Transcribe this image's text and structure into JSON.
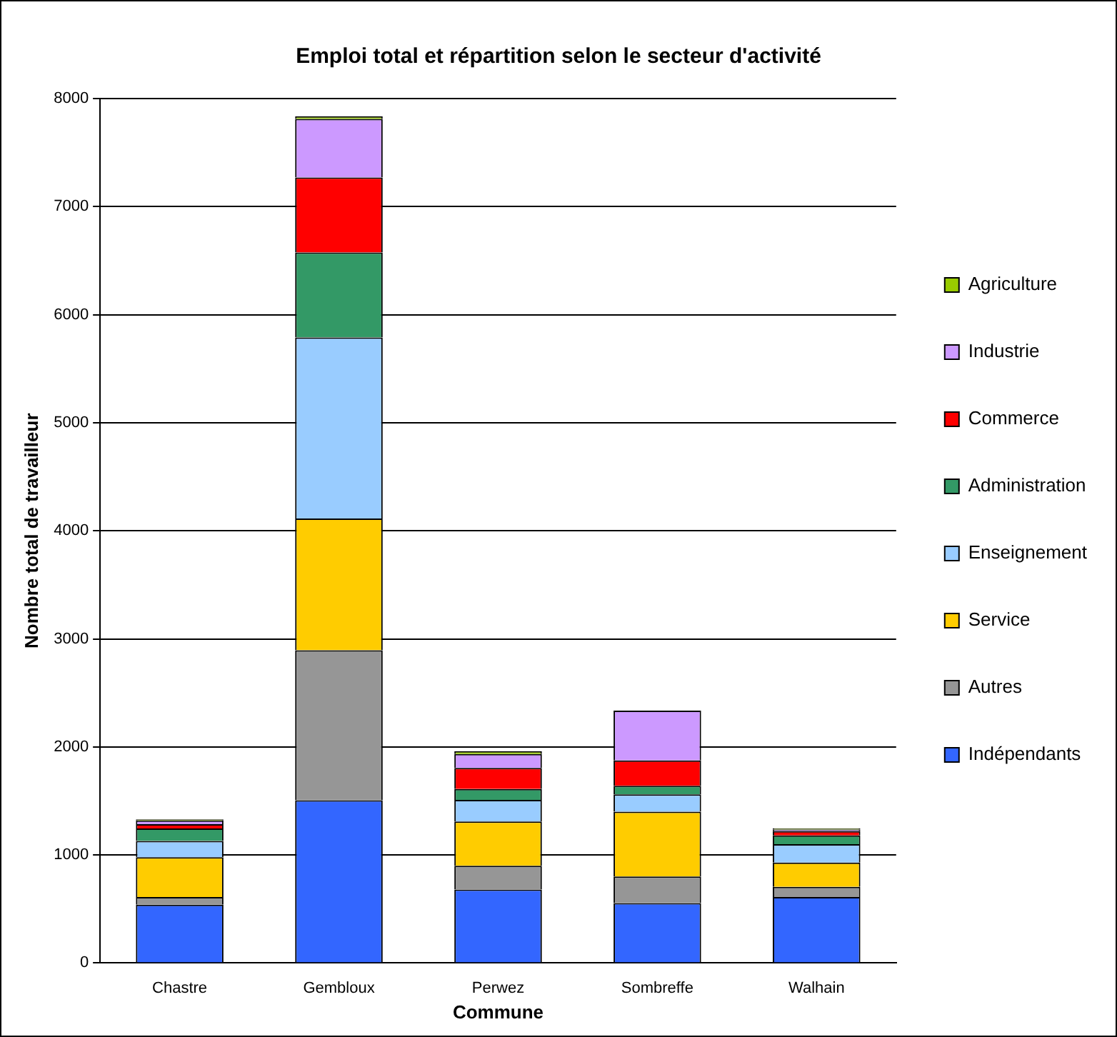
{
  "chart_data": {
    "type": "bar",
    "title": "Emploi total et répartition selon le secteur d'activité",
    "xlabel": "Commune",
    "ylabel": "Nombre total de travailleur",
    "categories": [
      "Chastre",
      "Gembloux",
      "Perwez",
      "Sombreffe",
      "Walhain"
    ],
    "stacked": true,
    "ylim": [
      0,
      8000
    ],
    "yticks": [
      0,
      1000,
      2000,
      3000,
      4000,
      5000,
      6000,
      7000,
      8000
    ],
    "grid": "y",
    "legend": "right",
    "series": [
      {
        "name": "Indépendants",
        "color": "#3366ff",
        "values": [
          540,
          1507,
          680,
          555,
          610
        ]
      },
      {
        "name": "Autres",
        "color": "#969696",
        "values": [
          70,
          1388,
          220,
          245,
          95
        ]
      },
      {
        "name": "Service",
        "color": "#ffcc00",
        "values": [
          370,
          1219,
          410,
          600,
          225
        ]
      },
      {
        "name": "Enseignement",
        "color": "#99ccff",
        "values": [
          150,
          1675,
          200,
          160,
          170
        ]
      },
      {
        "name": "Administration",
        "color": "#339966",
        "values": [
          115,
          786,
          100,
          80,
          80
        ]
      },
      {
        "name": "Commerce",
        "color": "#ff0000",
        "values": [
          40,
          694,
          195,
          235,
          40
        ]
      },
      {
        "name": "Industrie",
        "color": "#cc99ff",
        "values": [
          35,
          543,
          130,
          460,
          15
        ]
      },
      {
        "name": "Agriculture",
        "color": "#99cc00",
        "values": [
          10,
          24,
          25,
          0,
          10
        ]
      }
    ]
  }
}
